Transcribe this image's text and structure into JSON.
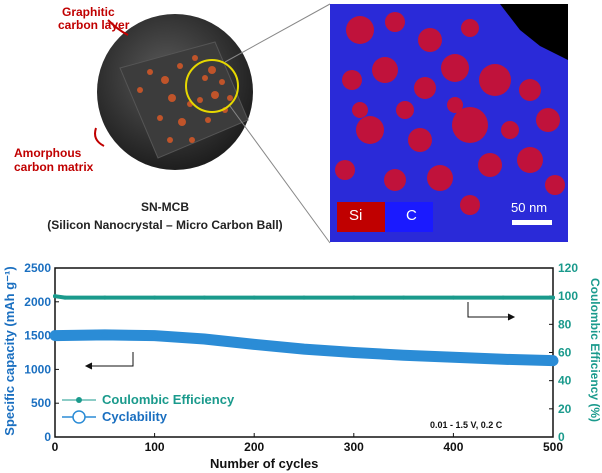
{
  "schematic": {
    "label_graphitic": "Graphitic carbon layer",
    "label_graphitic_line1": "Graphitic",
    "label_graphitic_line2": "carbon layer",
    "label_amorphous_line1": "Amorphous",
    "label_amorphous_line2": "carbon matrix",
    "caption_title": "SN-MCB",
    "caption_sub": "(Silicon Nanocrystal – Micro Carbon Ball)"
  },
  "micrograph": {
    "legend_si": "Si",
    "legend_c": "C",
    "scale_bar": "50 nm",
    "colors": {
      "si": "#c00000",
      "c": "#1a1aff",
      "background": "#000000"
    }
  },
  "chart_data": {
    "type": "line",
    "xlabel": "Number of cycles",
    "ylabel_left": "Specific capacity (mAh g⁻¹)",
    "ylabel_right": "Coulombic Efficiency (%)",
    "xlim": [
      0,
      500
    ],
    "ylim_left": [
      0,
      2500
    ],
    "ylim_right": [
      0,
      120
    ],
    "x_ticks": [
      0,
      100,
      200,
      300,
      400,
      500
    ],
    "y_left_ticks": [
      0,
      500,
      1000,
      1500,
      2000,
      2500
    ],
    "y_right_ticks": [
      0,
      20,
      40,
      60,
      80,
      100,
      120
    ],
    "annotation": "0.01 - 1.5 V, 0.2 C",
    "legend_placement": "bottom-left",
    "series": [
      {
        "name": "Coulombic Efficiency",
        "axis": "right",
        "color": "#1a9a8c",
        "x": [
          0,
          10,
          50,
          100,
          150,
          200,
          250,
          300,
          350,
          400,
          450,
          500
        ],
        "y": [
          100,
          99,
          99,
          99,
          99,
          99,
          99,
          99,
          99,
          99,
          99,
          99
        ]
      },
      {
        "name": "Cyclability",
        "axis": "left",
        "color": "#2b8cd6",
        "x": [
          0,
          50,
          100,
          150,
          200,
          250,
          300,
          350,
          400,
          450,
          500
        ],
        "y": [
          1500,
          1510,
          1500,
          1450,
          1370,
          1300,
          1250,
          1210,
          1180,
          1150,
          1130
        ]
      }
    ]
  }
}
